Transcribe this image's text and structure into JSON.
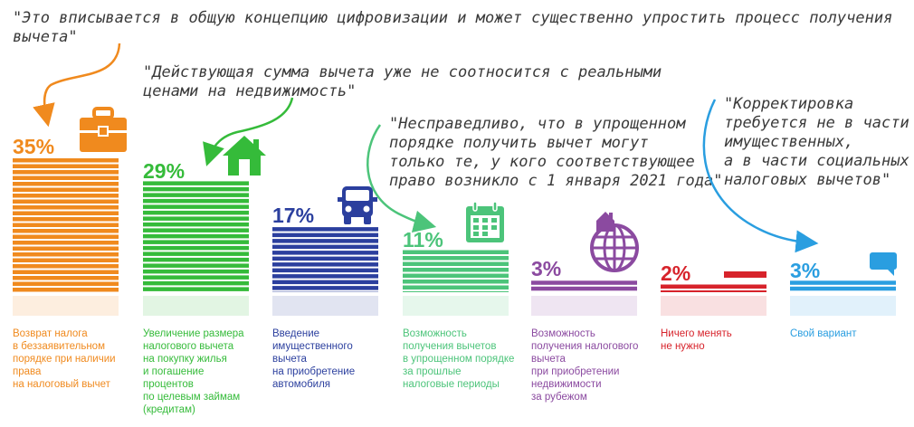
{
  "quotes": {
    "q1": "\"Это вписывается в общую концепцию цифровизации и может существенно упростить процесс получения\nвычета\"",
    "q2": "\"Действующая сумма вычета уже не соотносится с реальными\nценами на недвижимость\"",
    "q3": "\"Несправедливо, что в упрощенном\nпорядке получить вычет могут\nтолько те, у кого соответствующее\nправо возникло с 1 января 2021 года\"",
    "q4": "\"Корректировка\nтребуется не в части\nимущественных,\nа в части социальных\nналоговых вычетов\""
  },
  "chart_data": {
    "type": "bar",
    "ylim": [
      0,
      35
    ],
    "categories": [
      "Возврат налога\nв беззаявительном\nпорядке при наличии\nправа\nна налоговый вычет",
      "Увеличение размера\nналогового вычета\nна покупку жилья\nи погашение\nпроцентов\nпо целевым займам\n(кредитам)",
      "Введение\nимущественного\nвычета\nна приобретение\nавтомобиля",
      "Возможность\nполучения вычетов\nв упрощенном порядке\nза прошлые\nналоговые периоды",
      "Возможность\nполучения налогового\nвычета\nпри приобретении\nнедвижимости\nза рубежом",
      "Ничего менять\nне нужно",
      "Свой вариант"
    ],
    "values": [
      35,
      29,
      17,
      11,
      3,
      2,
      3
    ],
    "value_labels": [
      "35%",
      "29%",
      "17%",
      "11%",
      "3%",
      "2%",
      "3%"
    ],
    "colors": [
      "#f08a1e",
      "#35bb3a",
      "#2b3f9e",
      "#4cc47a",
      "#8b4aa0",
      "#d7232b",
      "#2a9ee0"
    ],
    "icons": [
      "briefcase-icon",
      "house-icon",
      "car-icon",
      "calendar-icon",
      "globe-house-icon",
      "",
      "speech-bubble-icon"
    ]
  }
}
